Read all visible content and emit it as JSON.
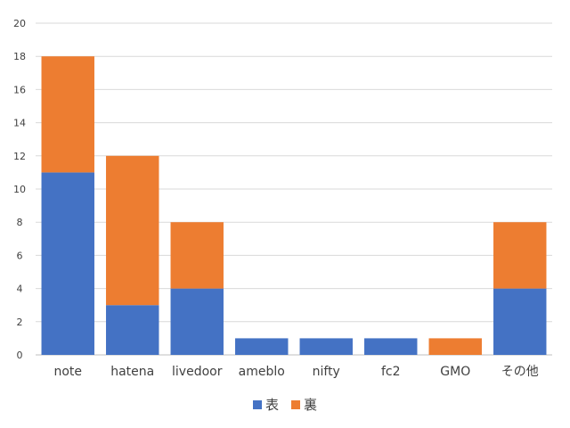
{
  "chart_data": {
    "type": "bar",
    "stacked": true,
    "categories": [
      "note",
      "hatena",
      "livedoor",
      "ameblo",
      "nifty",
      "fc2",
      "GMO",
      "その他"
    ],
    "series": [
      {
        "name": "表",
        "color": "#4472C4",
        "values": [
          11,
          3,
          4,
          1,
          1,
          1,
          0,
          4
        ]
      },
      {
        "name": "裏",
        "color": "#ED7D31",
        "values": [
          7,
          9,
          4,
          0,
          0,
          0,
          1,
          4
        ]
      }
    ],
    "ylim": [
      0,
      20
    ],
    "yticks": [
      0,
      2,
      4,
      6,
      8,
      10,
      12,
      14,
      16,
      18,
      20
    ],
    "grid": true,
    "legend": "bottom",
    "gridColor": "#d9d9d9",
    "axisColor": "#bfbfbf",
    "textColor": "#404040"
  }
}
